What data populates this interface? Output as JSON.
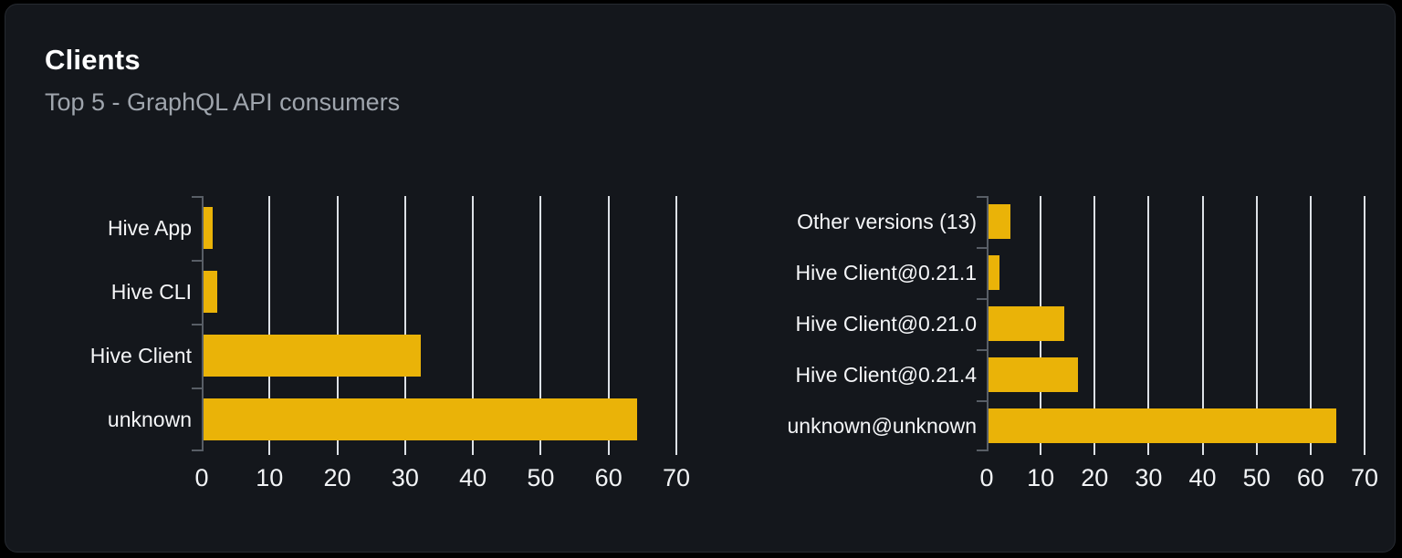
{
  "card": {
    "title": "Clients",
    "subtitle": "Top 5 - GraphQL API consumers"
  },
  "colors": {
    "bar": "#eab308",
    "card_background": "#14171c",
    "page_background": "#000000",
    "grid_line": "#dde1e6",
    "axis_line": "#585e66",
    "title_text": "#ffffff",
    "subtitle_text": "#9fa5ad",
    "label_text": "#f5f6f8"
  },
  "chart_data": [
    {
      "type": "bar",
      "orientation": "horizontal",
      "title": "Clients (by client name)",
      "categories": [
        "Hive App",
        "Hive CLI",
        "Hive Client",
        "unknown"
      ],
      "values": [
        1.4,
        2,
        32,
        64
      ],
      "xlim": [
        0,
        70
      ],
      "x_ticks": [
        0,
        10,
        20,
        30,
        40,
        50,
        60,
        70
      ],
      "ylabel": "",
      "xlabel": "",
      "grid": true,
      "legend": false
    },
    {
      "type": "bar",
      "orientation": "horizontal",
      "title": "Clients (by client version)",
      "categories": [
        "Other versions (13)",
        "Hive Client@0.21.1",
        "Hive Client@0.21.0",
        "Hive Client@0.21.4",
        "unknown@unknown"
      ],
      "values": [
        4,
        2,
        14,
        16.5,
        64.5
      ],
      "xlim": [
        0,
        70
      ],
      "x_ticks": [
        0,
        10,
        20,
        30,
        40,
        50,
        60,
        70
      ],
      "ylabel": "",
      "xlabel": "",
      "grid": true,
      "legend": false
    }
  ]
}
